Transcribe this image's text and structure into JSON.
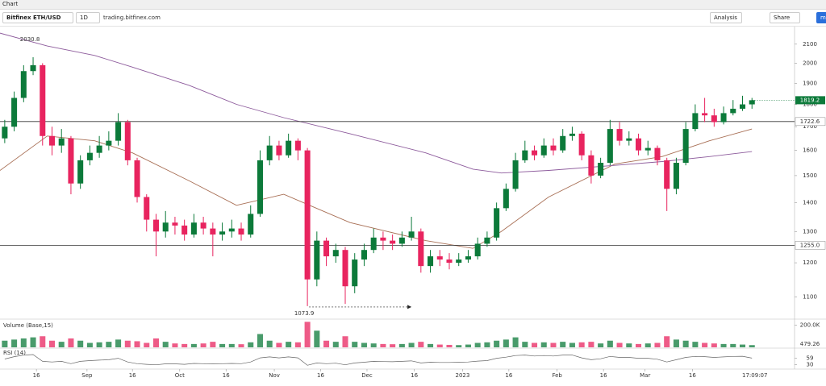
{
  "tab": "Chart",
  "toolbar": {
    "symbol": "Bitfinex ETH/USD",
    "interval": "1D",
    "link": "trading.bitfinex.com",
    "analysis": "Analysis",
    "share": "Share",
    "extra": "ma"
  },
  "chart_data": {
    "type": "candlestick",
    "log_scale": true,
    "up_color": "#0c7a3a",
    "down_color": "#e8245f",
    "xlim": [
      0,
      84
    ],
    "xticks": [
      {
        "value": 3.85,
        "label": "16"
      },
      {
        "value": 9.2,
        "label": "Sep"
      },
      {
        "value": 14.0,
        "label": "16"
      },
      {
        "value": 19.0,
        "label": "Oct"
      },
      {
        "value": 23.9,
        "label": "16"
      },
      {
        "value": 29.0,
        "label": "Nov"
      },
      {
        "value": 33.9,
        "label": "16"
      },
      {
        "value": 38.8,
        "label": "Dec"
      },
      {
        "value": 43.8,
        "label": "16"
      },
      {
        "value": 48.9,
        "label": "2023"
      },
      {
        "value": 53.8,
        "label": "16"
      },
      {
        "value": 58.9,
        "label": "Feb"
      },
      {
        "value": 63.8,
        "label": "16"
      },
      {
        "value": 68.2,
        "label": "Mar"
      },
      {
        "value": 73.2,
        "label": "16"
      }
    ],
    "countdown": "17:09:07",
    "ylim": [
      1041,
      2192
    ],
    "yticks": [
      1100,
      1200,
      1300,
      1400,
      1500,
      1600,
      1700,
      1800,
      1900,
      2000,
      2100
    ],
    "open": [
      1650,
      1700,
      1830,
      1960,
      1990,
      1660,
      1620,
      1650,
      1470,
      1560,
      1590,
      1620,
      1640,
      1720,
      1560,
      1420,
      1340,
      1300,
      1330,
      1320,
      1290,
      1330,
      1310,
      1290,
      1300,
      1310,
      1290,
      1360,
      1560,
      1620,
      1580,
      1640,
      1600,
      1150,
      1270,
      1220,
      1240,
      1130,
      1210,
      1240,
      1280,
      1270,
      1260,
      1280,
      1300,
      1190,
      1220,
      1210,
      1200,
      1210,
      1220,
      1260,
      1280,
      1380,
      1450,
      1560,
      1600,
      1580,
      1620,
      1600,
      1660,
      1670,
      1580,
      1500,
      1550,
      1690,
      1640,
      1650,
      1600,
      1610,
      1560,
      1450,
      1550,
      1690,
      1760,
      1750,
      1720,
      1760,
      1780,
      1800
    ],
    "high": [
      1730,
      1860,
      1990,
      2030.8,
      2000,
      1700,
      1690,
      1660,
      1580,
      1620,
      1660,
      1680,
      1760,
      1730,
      1570,
      1430,
      1360,
      1370,
      1350,
      1340,
      1360,
      1350,
      1330,
      1330,
      1340,
      1330,
      1390,
      1600,
      1660,
      1640,
      1670,
      1650,
      1610,
      1300,
      1280,
      1260,
      1250,
      1230,
      1260,
      1310,
      1300,
      1290,
      1300,
      1350,
      1310,
      1240,
      1240,
      1230,
      1230,
      1240,
      1280,
      1300,
      1400,
      1470,
      1590,
      1640,
      1620,
      1650,
      1650,
      1690,
      1700,
      1680,
      1600,
      1570,
      1730,
      1720,
      1680,
      1670,
      1640,
      1620,
      1570,
      1570,
      1720,
      1800,
      1830,
      1780,
      1790,
      1820,
      1840,
      1830
    ],
    "low": [
      1630,
      1680,
      1810,
      1940,
      1620,
      1580,
      1590,
      1430,
      1450,
      1540,
      1570,
      1600,
      1620,
      1540,
      1400,
      1300,
      1220,
      1280,
      1290,
      1270,
      1280,
      1290,
      1220,
      1270,
      1280,
      1270,
      1280,
      1350,
      1540,
      1560,
      1570,
      1560,
      1073.9,
      1130,
      1190,
      1200,
      1080,
      1110,
      1190,
      1230,
      1240,
      1240,
      1250,
      1270,
      1170,
      1170,
      1190,
      1180,
      1190,
      1200,
      1210,
      1250,
      1270,
      1370,
      1440,
      1550,
      1560,
      1570,
      1580,
      1590,
      1640,
      1560,
      1470,
      1490,
      1540,
      1620,
      1620,
      1580,
      1580,
      1540,
      1370,
      1430,
      1540,
      1680,
      1720,
      1700,
      1710,
      1750,
      1770,
      1780
    ],
    "close": [
      1700,
      1830,
      1960,
      1990,
      1660,
      1620,
      1650,
      1470,
      1560,
      1590,
      1620,
      1640,
      1720,
      1560,
      1420,
      1340,
      1300,
      1330,
      1320,
      1290,
      1330,
      1310,
      1290,
      1300,
      1310,
      1290,
      1360,
      1560,
      1620,
      1580,
      1640,
      1600,
      1150,
      1270,
      1220,
      1240,
      1130,
      1210,
      1240,
      1280,
      1270,
      1260,
      1280,
      1300,
      1190,
      1220,
      1210,
      1200,
      1210,
      1220,
      1260,
      1280,
      1380,
      1450,
      1560,
      1600,
      1580,
      1620,
      1600,
      1660,
      1670,
      1580,
      1500,
      1550,
      1690,
      1640,
      1650,
      1600,
      1610,
      1560,
      1450,
      1550,
      1690,
      1760,
      1750,
      1720,
      1760,
      1780,
      1800,
      1819.2
    ],
    "lines_x": [
      0,
      5,
      10,
      14,
      20,
      25,
      30,
      37,
      45,
      50,
      53,
      58,
      65,
      70,
      75,
      79.5
    ],
    "lines": [
      {
        "color": "#a86f55",
        "values": [
          1520,
          1660,
          1640,
          1590,
          1480,
          1390,
          1430,
          1330,
          1270,
          1245,
          1300,
          1420,
          1545,
          1575,
          1640,
          1690
        ]
      },
      {
        "color": "#8d5b9c",
        "values": [
          2160,
          2090,
          2040,
          1980,
          1890,
          1800,
          1740,
          1670,
          1590,
          1525,
          1510,
          1520,
          1540,
          1555,
          1575,
          1595
        ]
      }
    ],
    "levels": [
      {
        "value": 1722.6,
        "label": "1722.6"
      },
      {
        "value": 1255.0,
        "label": "1255.0"
      }
    ],
    "last_price": {
      "value": 1819.2,
      "label": "1819.2",
      "color": "#0c7a3a"
    },
    "annotations": [
      {
        "value": 2030.8,
        "label": "2030.8"
      },
      {
        "value": 1073.9,
        "label": "1073.9"
      }
    ],
    "volume": {
      "title": "Volume (Base,15)",
      "ylim": [
        0,
        240000
      ],
      "yticks": [
        {
          "value": 200000,
          "label": "200.0K"
        }
      ],
      "last_value": 479.26,
      "values": [
        60000,
        70000,
        80000,
        90000,
        100000,
        60000,
        50000,
        80000,
        60000,
        40000,
        45000,
        50000,
        70000,
        60000,
        55000,
        40000,
        80000,
        50000,
        35000,
        30000,
        30000,
        35000,
        50000,
        30000,
        30000,
        28000,
        45000,
        120000,
        60000,
        40000,
        50000,
        45000,
        230000,
        150000,
        60000,
        50000,
        100000,
        50000,
        40000,
        35000,
        30000,
        28000,
        30000,
        40000,
        50000,
        30000,
        25000,
        22000,
        20000,
        25000,
        40000,
        45000,
        60000,
        70000,
        90000,
        50000,
        40000,
        45000,
        40000,
        50000,
        40000,
        45000,
        50000,
        35000,
        60000,
        40000,
        35000,
        30000,
        35000,
        40000,
        100000,
        70000,
        60000,
        50000,
        40000,
        35000,
        30000,
        30000,
        25000,
        20000
      ]
    },
    "rsi": {
      "title": "RSI (14)",
      "color": "#666",
      "ylim": [
        15,
        95
      ],
      "yticks": [
        59,
        30
      ],
      "values": [
        55,
        65,
        72,
        74,
        45,
        42,
        45,
        35,
        45,
        48,
        50,
        52,
        58,
        42,
        35,
        32,
        30,
        34,
        34,
        32,
        36,
        35,
        34,
        35,
        36,
        35,
        42,
        60,
        64,
        60,
        64,
        60,
        28,
        38,
        35,
        37,
        30,
        38,
        41,
        45,
        44,
        43,
        45,
        47,
        38,
        41,
        40,
        40,
        41,
        42,
        46,
        48,
        58,
        63,
        70,
        72,
        68,
        70,
        68,
        72,
        72,
        60,
        52,
        56,
        66,
        62,
        62,
        58,
        58,
        54,
        42,
        52,
        62,
        66,
        65,
        62,
        64,
        66,
        67,
        59
      ]
    }
  }
}
